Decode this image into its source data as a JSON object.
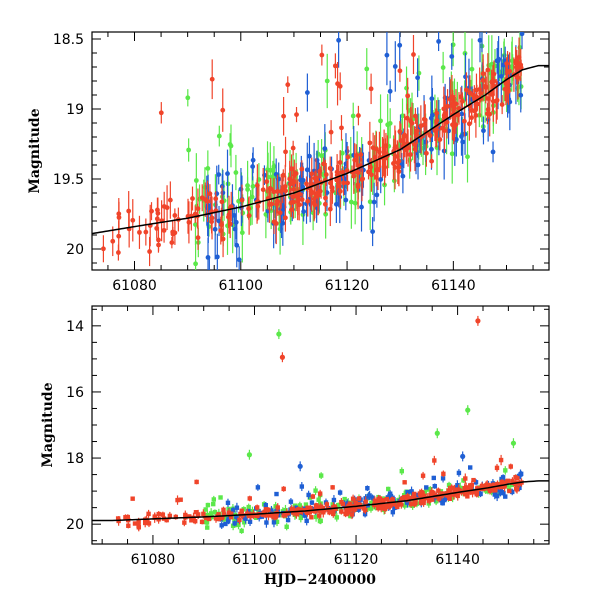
{
  "colors": {
    "red": "#f0442a",
    "green": "#5be84a",
    "blue": "#1f5fd4",
    "model": "#000000"
  },
  "chart_data": [
    {
      "type": "scatter",
      "panel": "top",
      "title": "",
      "xlabel": "",
      "ylabel": "Magnitude",
      "xlim": [
        61072,
        61158
      ],
      "ylim": [
        20.15,
        18.45
      ],
      "y_inverted": true,
      "xticks": [
        61080,
        61100,
        61120,
        61140
      ],
      "xtick_labels": [
        "61080",
        "61100",
        "61120",
        "61140"
      ],
      "yticks": [
        18.5,
        19,
        19.5,
        20
      ],
      "ytick_labels": [
        "18.5",
        "19",
        "19.5",
        "20"
      ],
      "error_bars": true,
      "model_curve": {
        "color": "black",
        "x": [
          61072,
          61080,
          61090,
          61100,
          61110,
          61120,
          61130,
          61140,
          61146,
          61150,
          61153,
          61156,
          61158
        ],
        "y": [
          19.89,
          19.84,
          19.78,
          19.7,
          19.6,
          19.46,
          19.29,
          19.04,
          18.9,
          18.79,
          18.72,
          18.69,
          18.69
        ]
      },
      "series_colors": [
        "red",
        "green",
        "blue"
      ]
    },
    {
      "type": "scatter",
      "panel": "bottom",
      "title": "",
      "xlabel": "HJD−2400000",
      "ylabel": "Magnitude",
      "xlim": [
        61068,
        61158
      ],
      "ylim": [
        20.6,
        13.4
      ],
      "y_inverted": true,
      "xticks": [
        61080,
        61100,
        61120,
        61140
      ],
      "xtick_labels": [
        "61080",
        "61100",
        "61120",
        "61140"
      ],
      "yticks": [
        14,
        16,
        18,
        20
      ],
      "ytick_labels": [
        "14",
        "16",
        "18",
        "20"
      ],
      "error_bars": true,
      "model_curve": {
        "color": "black",
        "x": [
          61072,
          61080,
          61090,
          61100,
          61110,
          61120,
          61130,
          61140,
          61146,
          61150,
          61153,
          61156,
          61158
        ],
        "y": [
          19.89,
          19.84,
          19.78,
          19.7,
          19.6,
          19.46,
          19.29,
          19.04,
          18.9,
          18.79,
          18.72,
          18.69,
          18.69
        ]
      },
      "outliers": [
        {
          "color": "green",
          "x": 61104.8,
          "y": 14.25
        },
        {
          "color": "red",
          "x": 61105.5,
          "y": 14.95
        },
        {
          "color": "red",
          "x": 61144.0,
          "y": 13.85
        },
        {
          "color": "green",
          "x": 61099.0,
          "y": 17.9
        },
        {
          "color": "green",
          "x": 61142.0,
          "y": 16.55
        },
        {
          "color": "green",
          "x": 61136.0,
          "y": 17.25
        },
        {
          "color": "green",
          "x": 61151.0,
          "y": 17.55
        },
        {
          "color": "blue",
          "x": 61141.0,
          "y": 17.95
        },
        {
          "color": "blue",
          "x": 61109.0,
          "y": 18.25
        }
      ],
      "series_colors": [
        "red",
        "green",
        "blue"
      ]
    }
  ]
}
